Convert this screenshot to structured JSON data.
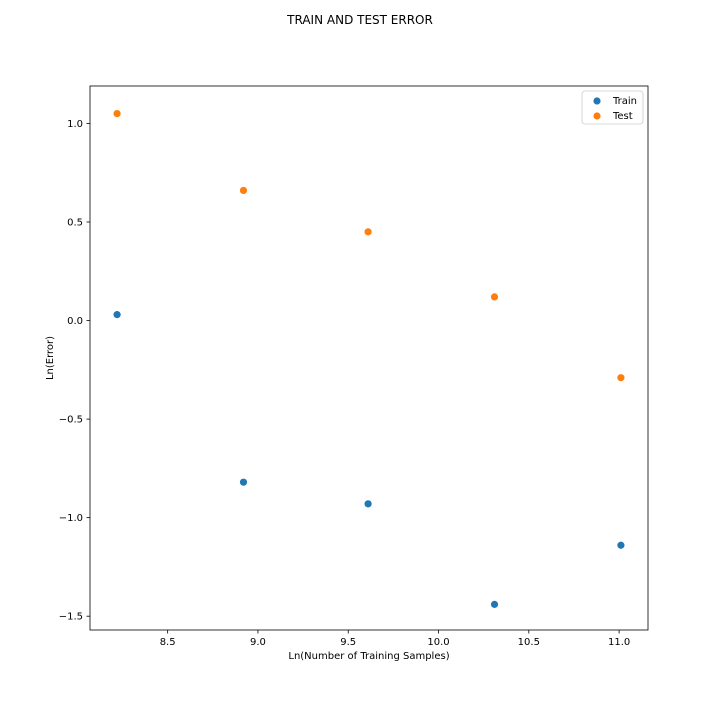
{
  "chart_data": {
    "type": "scatter",
    "title": "TRAIN AND TEST ERROR",
    "xlabel": "Ln(Number of Training Samples)",
    "ylabel": "Ln(Error)",
    "xlim": [
      8.07,
      11.16
    ],
    "ylim": [
      -1.57,
      1.19
    ],
    "xticks": [
      8.5,
      9.0,
      9.5,
      10.0,
      10.5,
      11.0
    ],
    "xtick_labels": [
      "8.5",
      "9.0",
      "9.5",
      "10.0",
      "10.5",
      "11.0"
    ],
    "yticks": [
      -1.5,
      -1.0,
      -0.5,
      0.0,
      0.5,
      1.0
    ],
    "ytick_labels": [
      "−1.5",
      "−1.0",
      "−0.5",
      "0.0",
      "0.5",
      "1.0"
    ],
    "grid": false,
    "legend_position": "top-right",
    "series": [
      {
        "name": "Train",
        "color": "#1f77b4",
        "x": [
          8.22,
          8.92,
          9.61,
          10.31,
          11.01
        ],
        "y": [
          0.03,
          -0.82,
          -0.93,
          -1.44,
          -1.14
        ]
      },
      {
        "name": "Test",
        "color": "#ff7f0e",
        "x": [
          8.22,
          8.92,
          9.61,
          10.31,
          11.01
        ],
        "y": [
          1.05,
          0.66,
          0.45,
          0.12,
          -0.29
        ]
      }
    ]
  }
}
